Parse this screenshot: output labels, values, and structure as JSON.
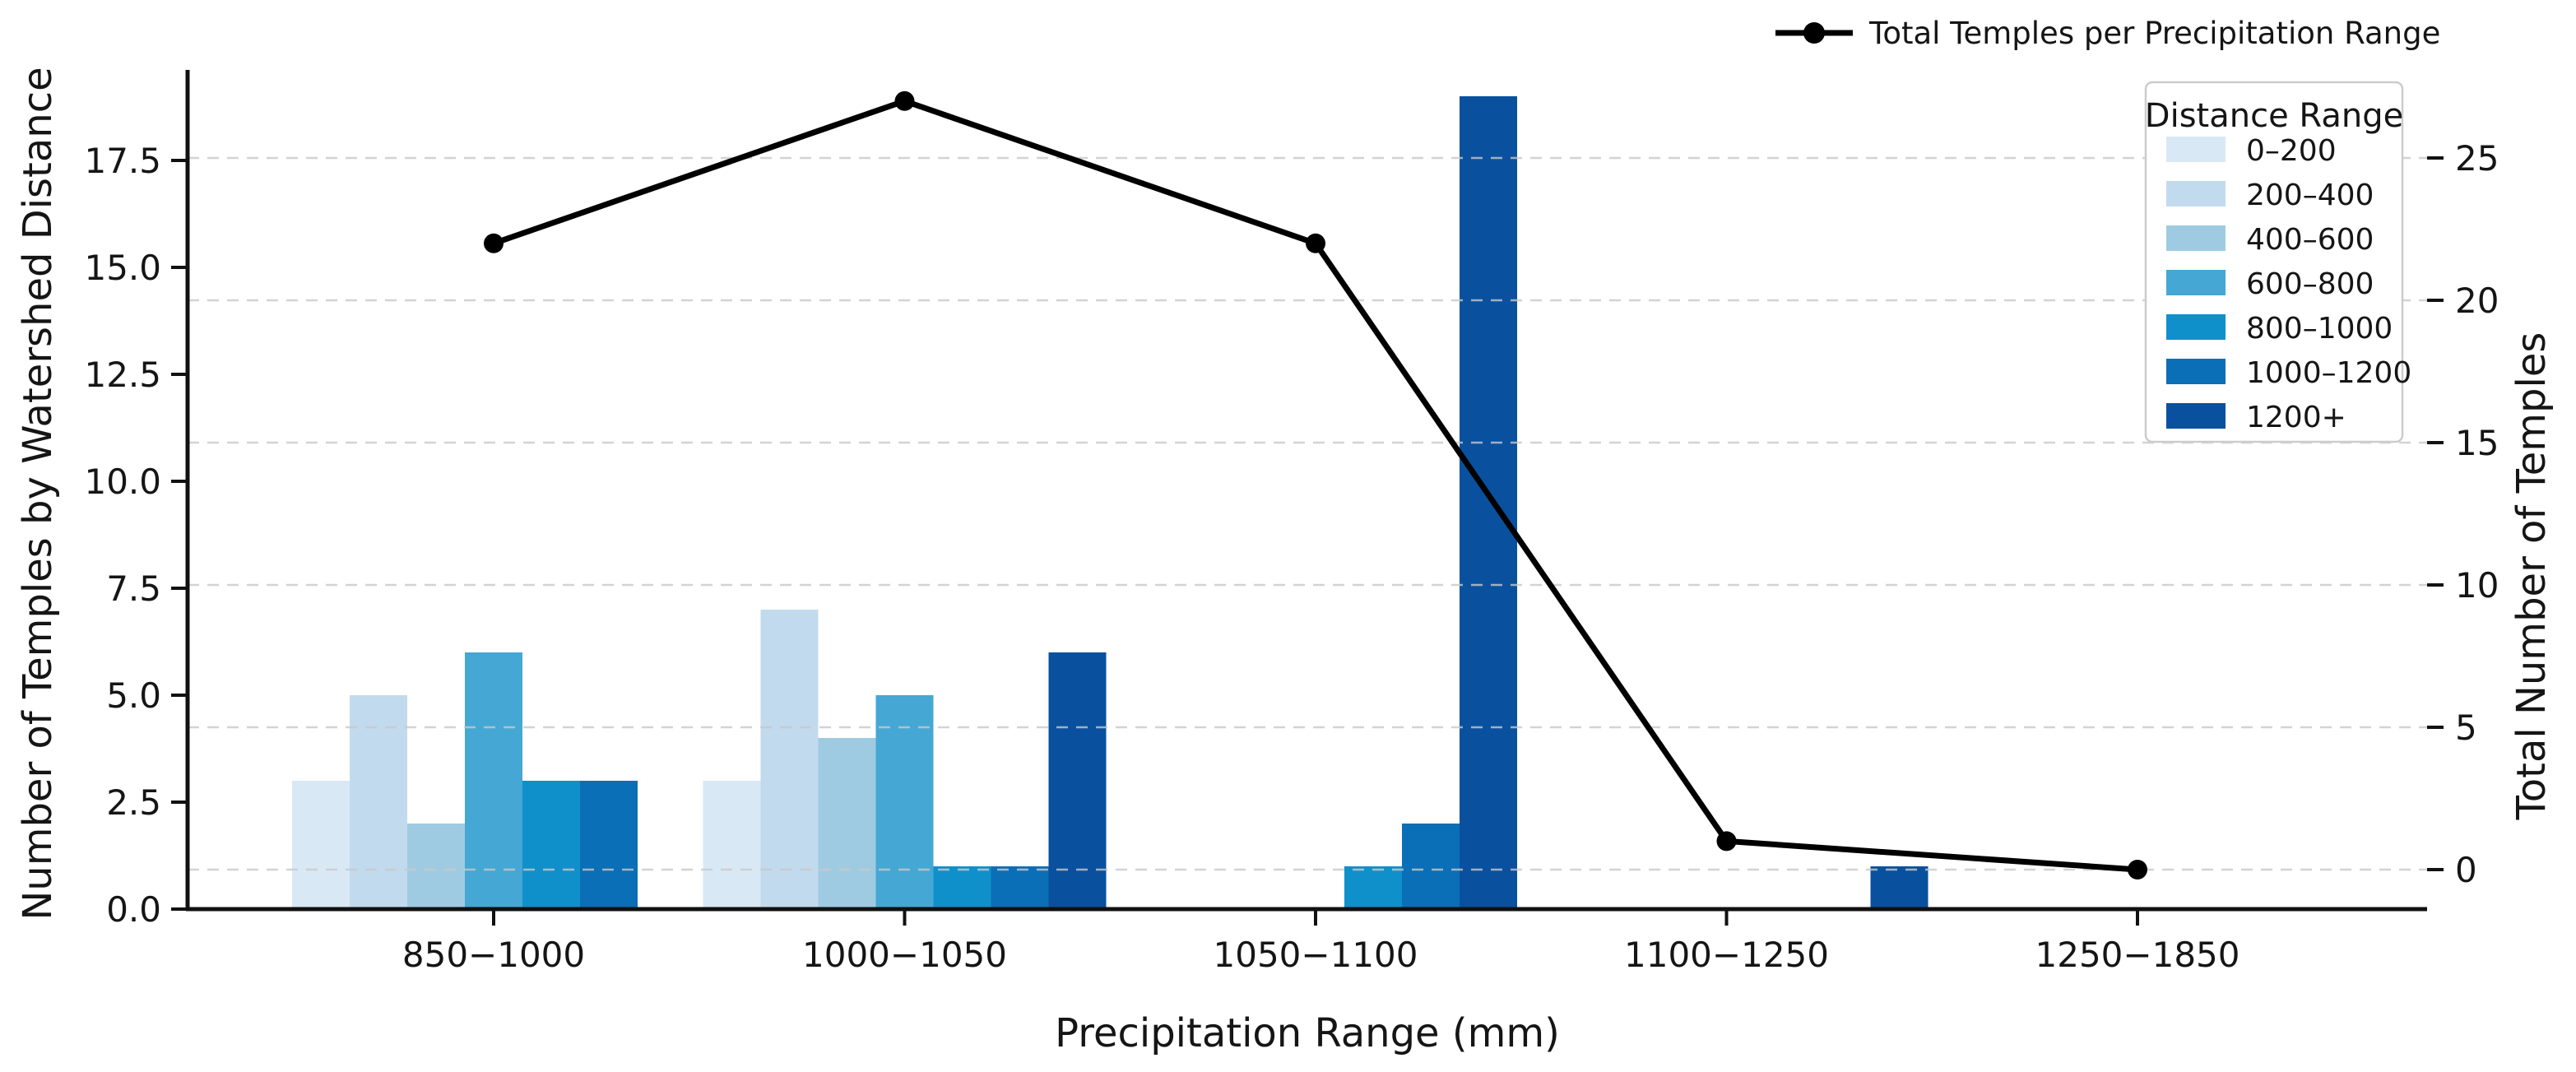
{
  "figure": {
    "xlabel": "Precipitation Range (mm)",
    "ylabel_left": "Number of Temples by Watershed Distance",
    "ylabel_right": "Total Number of Temples",
    "background": "#ffffff",
    "grid_color": "#c8c8c8",
    "spine_color": "#111111"
  },
  "line_legend": {
    "label": "Total Temples per Precipitation Range",
    "marker": "line-with-dot-icon",
    "color": "#000000"
  },
  "legend": {
    "title": "Distance Range",
    "position": "upper right",
    "border_color": "#cccccc"
  },
  "chart_data": {
    "type": "bar",
    "subtype": "grouped-bar-with-line-overlay",
    "categories": [
      "850−1000",
      "1000−1050",
      "1050−1100",
      "1100−1250",
      "1250−1850"
    ],
    "series": [
      {
        "name": "0–200",
        "color": "#d9e8f5",
        "values": [
          3,
          3,
          0,
          0,
          0
        ]
      },
      {
        "name": "200–400",
        "color": "#c2daee",
        "values": [
          5,
          7,
          0,
          0,
          0
        ]
      },
      {
        "name": "400–600",
        "color": "#9fcbe2",
        "values": [
          2,
          4,
          0,
          0,
          0
        ]
      },
      {
        "name": "600–800",
        "color": "#45a7d4",
        "values": [
          6,
          5,
          0,
          0,
          0
        ]
      },
      {
        "name": "800–1000",
        "color": "#0f90cb",
        "values": [
          3,
          1,
          1,
          0,
          0
        ]
      },
      {
        "name": "1000–1200",
        "color": "#0a6fb6",
        "values": [
          3,
          1,
          2,
          0,
          0
        ]
      },
      {
        "name": "1200+",
        "color": "#09519e",
        "values": [
          0,
          6,
          19,
          1,
          0
        ]
      }
    ],
    "line_series": {
      "name": "Total Temples per Precipitation Range",
      "color": "#000000",
      "values": [
        22,
        27,
        22,
        1,
        0
      ]
    },
    "title": "",
    "xlabel": "Precipitation Range (mm)",
    "ylabel": "Number of Temples by Watershed Distance",
    "ylabel_right": "Total Number of Temples",
    "left_axis": {
      "tick_labels": [
        "0.0",
        "2.5",
        "5.0",
        "7.5",
        "10.0",
        "12.5",
        "15.0",
        "17.5"
      ],
      "range": [
        0,
        19.6
      ]
    },
    "right_axis": {
      "tick_labels": [
        "0",
        "5",
        "10",
        "15",
        "20",
        "25"
      ],
      "range": [
        -1.39,
        28.1
      ]
    },
    "grid": "horizontal dashed at right-axis ticks",
    "legend_position": "upper right"
  }
}
